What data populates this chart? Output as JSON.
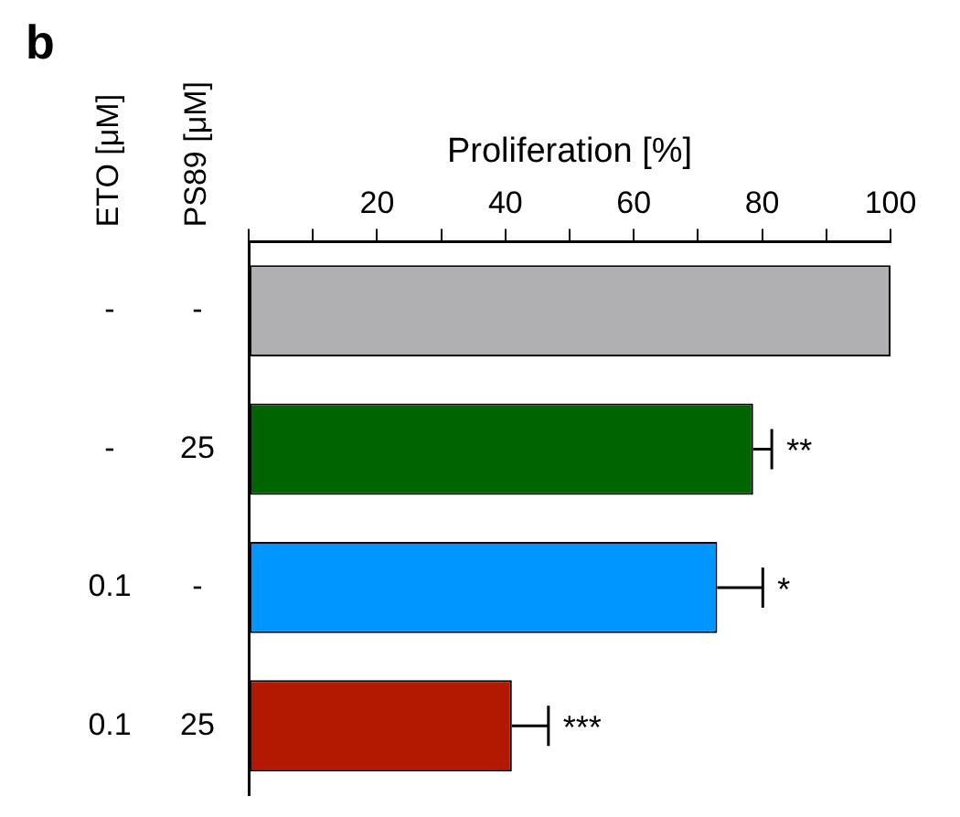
{
  "chart_data": {
    "type": "bar",
    "orientation": "horizontal",
    "xlabel": "Proliferation [%]",
    "ylabel": "PS89 [μM]\nETO [μM]",
    "categories": [
      "-\n-",
      "25\n-",
      "-\n0.1",
      "25\n0.1"
    ],
    "values": [
      100,
      78.6,
      73.0,
      41.0
    ],
    "colors": [
      "#b0b0b2",
      "#006400",
      "#0096ff",
      "#b31900"
    ],
    "errors": [
      null,
      [
        78.6,
        81.5
      ],
      [
        73.0,
        80.1
      ],
      [
        41.0,
        46.7
      ]
    ],
    "xlim": [
      0,
      100
    ],
    "xticks": [
      {
        "value": 0,
        "label": null
      },
      {
        "value": 10,
        "label": null
      },
      20,
      {
        "value": 30,
        "label": null
      },
      40,
      {
        "value": 50,
        "label": null
      },
      60,
      {
        "value": 70,
        "label": null
      },
      80,
      {
        "value": 90,
        "label": null
      },
      100
    ],
    "grid": false,
    "legend": false,
    "annotations": [
      "b",
      {
        "text": "**",
        "x": 81.5,
        "y": "25\n-"
      },
      {
        "text": "*",
        "x": 80.1,
        "y": "-\n0.1"
      },
      {
        "text": "***",
        "x": 46.7,
        "y": "25\n0.1"
      }
    ]
  }
}
